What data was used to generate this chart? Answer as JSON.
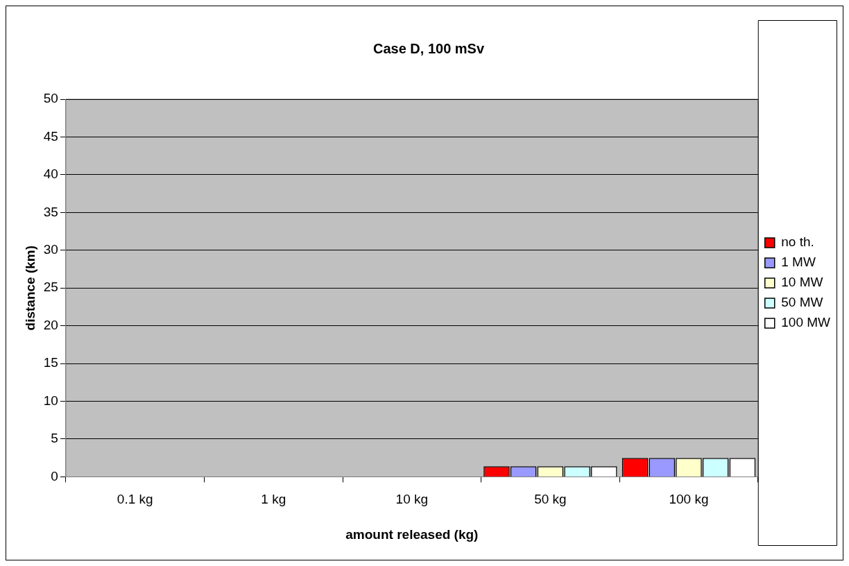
{
  "chart_data": {
    "type": "bar",
    "title": "Case D, 100 mSv",
    "xlabel": "amount released (kg)",
    "ylabel": "distance (km)",
    "categories": [
      "0.1 kg",
      "1 kg",
      "10 kg",
      "50 kg",
      "100 kg"
    ],
    "series": [
      {
        "name": "no th.",
        "color": "#ff0000",
        "values": [
          0,
          0,
          0,
          1.4,
          2.5
        ]
      },
      {
        "name": "1 MW",
        "color": "#9999ff",
        "values": [
          0,
          0,
          0,
          1.4,
          2.5
        ]
      },
      {
        "name": "10 MW",
        "color": "#ffffcc",
        "values": [
          0,
          0,
          0,
          1.4,
          2.5
        ]
      },
      {
        "name": "50 MW",
        "color": "#ccffff",
        "values": [
          0,
          0,
          0,
          1.4,
          2.5
        ]
      },
      {
        "name": "100 MW",
        "color": "#ffffff",
        "values": [
          0,
          0,
          0,
          1.4,
          2.5
        ]
      }
    ],
    "ylim": [
      0,
      50
    ],
    "yticks": [
      0,
      5,
      10,
      15,
      20,
      25,
      30,
      35,
      40,
      45,
      50
    ],
    "grid": "y",
    "legend": "right"
  }
}
